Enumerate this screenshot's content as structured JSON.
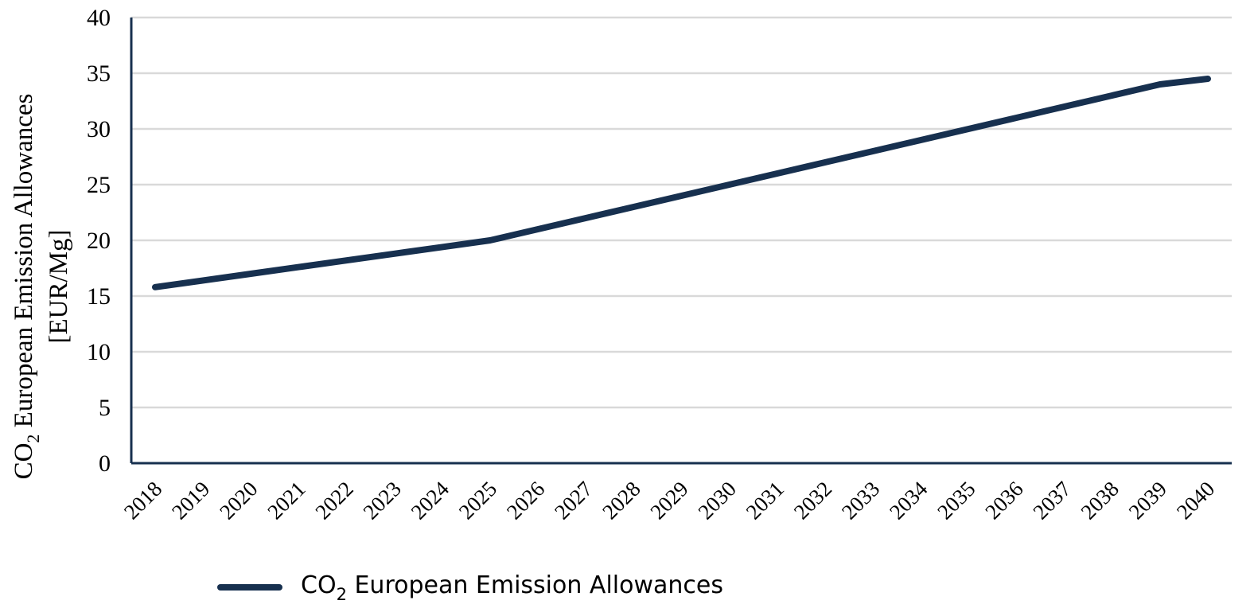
{
  "chart_data": {
    "type": "line",
    "title": "",
    "xlabel": "",
    "ylabel": {
      "prefix": "CO",
      "subscript": "2",
      "line1_rest": " European Emission Allowances",
      "line2": "[EUR/Mg]"
    },
    "ylim": [
      0,
      40
    ],
    "yticks": [
      0,
      5,
      10,
      15,
      20,
      25,
      30,
      35,
      40
    ],
    "grid": true,
    "legend_position": "bottom",
    "x": [
      "2018",
      "2019",
      "2020",
      "2021",
      "2022",
      "2023",
      "2024",
      "2025",
      "2026",
      "2027",
      "2028",
      "2029",
      "2030",
      "2031",
      "2032",
      "2033",
      "2034",
      "2035",
      "2036",
      "2037",
      "2038",
      "2039",
      "2040"
    ],
    "series": [
      {
        "name": "CO2 European Emission Allowances",
        "legend_label": {
          "prefix": "CO",
          "subscript": "2",
          "rest": " European Emission Allowances"
        },
        "color": "#17304f",
        "values": [
          15.8,
          16.4,
          17.0,
          17.6,
          18.2,
          18.8,
          19.4,
          20.0,
          21.0,
          22.0,
          23.0,
          24.0,
          25.0,
          26.0,
          27.0,
          28.0,
          29.0,
          30.0,
          31.0,
          32.0,
          33.0,
          34.0,
          34.5
        ]
      }
    ],
    "colors": {
      "grid": "#d9d9d9",
      "axis": "#17304f"
    }
  }
}
